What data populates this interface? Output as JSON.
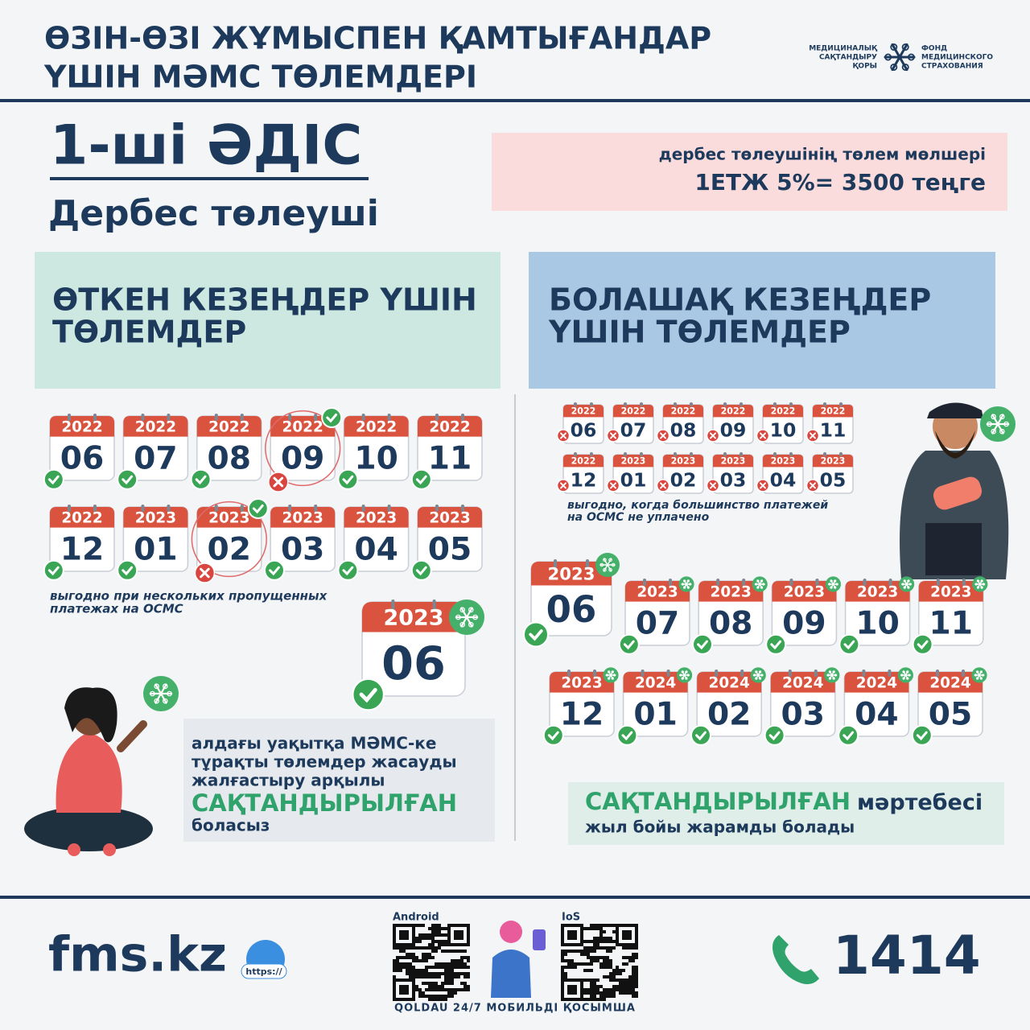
{
  "header": {
    "title_lines": [
      "ӨЗІН-ӨЗІ ЖҰМЫСПЕН ҚАМТЫҒАНДАР",
      "ҮШІН МӘМС ТӨЛЕМДЕРІ"
    ],
    "logo_kz": [
      "МЕДИЦИНАЛЫҚ",
      "САҚТАНДЫРУ",
      "ҚОРЫ"
    ],
    "logo_ru": [
      "ФОНД",
      "МЕДИЦИНСКОГО",
      "СТРАХОВАНИЯ"
    ]
  },
  "method": {
    "title": "1-ші ӘДІС",
    "subtitle": "Дербес төлеуші"
  },
  "payment_box": {
    "lines": [
      "дербес төлеушінің төлем мөлшері",
      "1ЕТЖ 5%= 3500 теңге"
    ]
  },
  "past": {
    "title_lines": [
      "ӨТКЕН КЕЗЕҢДЕР ҮШІН",
      "ТӨЛЕМДЕР"
    ],
    "months": [
      {
        "year": "2022",
        "month": "06",
        "status": "paid"
      },
      {
        "year": "2022",
        "month": "07",
        "status": "paid"
      },
      {
        "year": "2022",
        "month": "08",
        "status": "paid"
      },
      {
        "year": "2022",
        "month": "09",
        "status": "late"
      },
      {
        "year": "2022",
        "month": "10",
        "status": "paid"
      },
      {
        "year": "2022",
        "month": "11",
        "status": "paid"
      },
      {
        "year": "2022",
        "month": "12",
        "status": "paid"
      },
      {
        "year": "2023",
        "month": "01",
        "status": "paid"
      },
      {
        "year": "2023",
        "month": "02",
        "status": "late"
      },
      {
        "year": "2023",
        "month": "03",
        "status": "paid"
      },
      {
        "year": "2023",
        "month": "04",
        "status": "paid"
      },
      {
        "year": "2023",
        "month": "05",
        "status": "paid"
      }
    ],
    "note_lines": [
      "выгодно при нескольких пропущенных",
      "платежах на ОСМС"
    ],
    "current": {
      "year": "2023",
      "month": "06",
      "status": "paid"
    },
    "info_lines": [
      "алдағы уақытқа МӘМС-ке",
      "тұрақты төлемдер жасауды",
      "жалғастыру арқылы"
    ],
    "highlight": "САҚТАНДЫРЫЛҒАН",
    "info_end": "боласыз"
  },
  "future": {
    "title_lines": [
      "БОЛАШАҚ КЕЗЕҢДЕР",
      "ҮШІН ТӨЛЕМДЕР"
    ],
    "months": [
      {
        "year": "2022",
        "month": "06",
        "status": "unpaid"
      },
      {
        "year": "2022",
        "month": "07",
        "status": "unpaid"
      },
      {
        "year": "2022",
        "month": "08",
        "status": "unpaid"
      },
      {
        "year": "2022",
        "month": "09",
        "status": "unpaid"
      },
      {
        "year": "2022",
        "month": "10",
        "status": "unpaid"
      },
      {
        "year": "2022",
        "month": "11",
        "status": "unpaid"
      },
      {
        "year": "2022",
        "month": "12",
        "status": "unpaid"
      },
      {
        "year": "2023",
        "month": "01",
        "status": "unpaid"
      },
      {
        "year": "2023",
        "month": "02",
        "status": "unpaid"
      },
      {
        "year": "2023",
        "month": "03",
        "status": "unpaid"
      },
      {
        "year": "2023",
        "month": "04",
        "status": "unpaid"
      },
      {
        "year": "2023",
        "month": "05",
        "status": "unpaid"
      }
    ],
    "note_lines": [
      "выгодно, когда большинство платежей",
      "на ОСМС не уплачено"
    ],
    "upcoming": [
      {
        "year": "2023",
        "month": "06",
        "status": "paid"
      },
      {
        "year": "2023",
        "month": "07",
        "status": "paid"
      },
      {
        "year": "2023",
        "month": "08",
        "status": "paid"
      },
      {
        "year": "2023",
        "month": "09",
        "status": "paid"
      },
      {
        "year": "2023",
        "month": "10",
        "status": "paid"
      },
      {
        "year": "2023",
        "month": "11",
        "status": "paid"
      },
      {
        "year": "2023",
        "month": "12",
        "status": "paid"
      },
      {
        "year": "2024",
        "month": "01",
        "status": "paid"
      },
      {
        "year": "2024",
        "month": "02",
        "status": "paid"
      },
      {
        "year": "2024",
        "month": "03",
        "status": "paid"
      },
      {
        "year": "2024",
        "month": "04",
        "status": "paid"
      },
      {
        "year": "2024",
        "month": "05",
        "status": "paid"
      }
    ],
    "highlight": "САҚТАНДЫРЫЛҒАН",
    "status_word": "мәртебесі",
    "info_end": "жыл бойы жарамды болады"
  },
  "footer": {
    "site": "fms.kz",
    "badge": "https://",
    "android": "Android",
    "ios": "IoS",
    "app": "QOLDAU 24/7 МОБИЛЬДІ ҚОСЫМША",
    "phone": "1414"
  }
}
